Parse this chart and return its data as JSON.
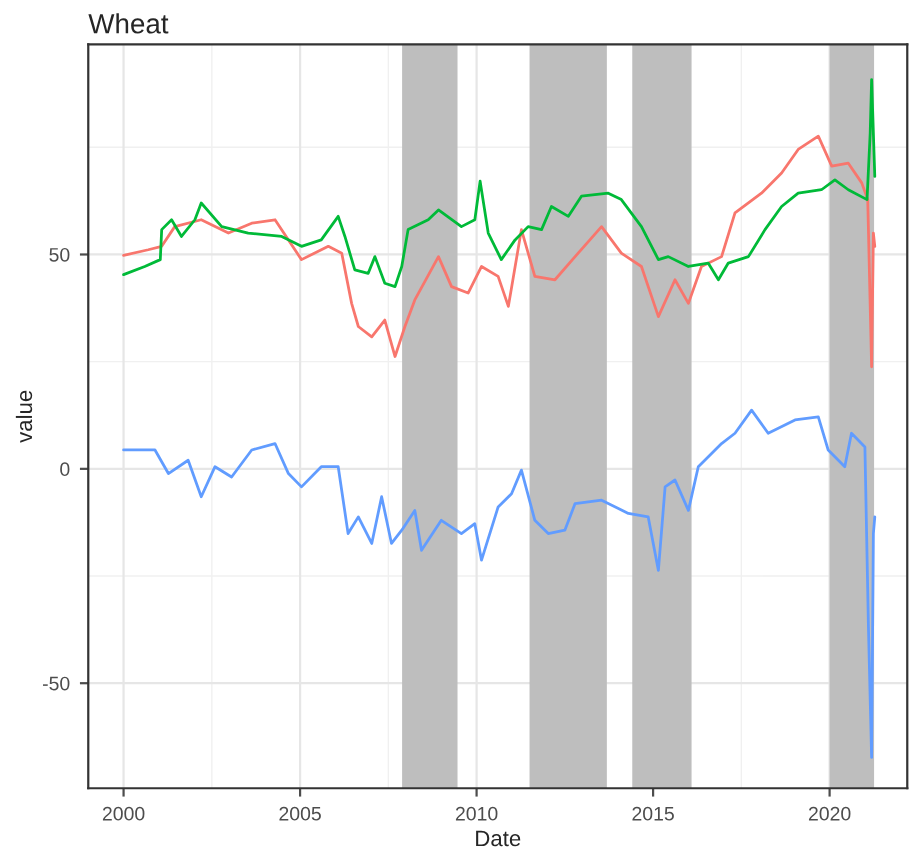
{
  "chart_data": {
    "type": "line",
    "title": "Wheat",
    "xlabel": "Date",
    "ylabel": "value",
    "xlim": [
      1999.0,
      2022.2
    ],
    "xticks": [
      2000,
      2005,
      2010,
      2015,
      2020
    ],
    "ylim": [
      -74.5,
      99
    ],
    "yticks": [
      -50,
      0,
      50
    ],
    "grid": true,
    "legend": false,
    "bands": [
      {
        "axis": "x",
        "from": 2007.89,
        "to": 2009.46,
        "color": "#bebebe"
      },
      {
        "axis": "x",
        "from": 2011.5,
        "to": 2013.69,
        "color": "#bebebe"
      },
      {
        "axis": "x",
        "from": 2014.41,
        "to": 2016.09,
        "color": "#bebebe"
      },
      {
        "axis": "x",
        "from": 2020.0,
        "to": 2021.26,
        "color": "#bebebe"
      }
    ],
    "series": [
      {
        "color": "#f8766d",
        "x": [
          2000,
          2000.7,
          2001.08,
          2001.45,
          2002.2,
          2002.97,
          2003.63,
          2004.29,
          2005.04,
          2005.8,
          2006.18,
          2006.46,
          2006.65,
          2007.03,
          2007.4,
          2007.69,
          2007.97,
          2008.25,
          2008.92,
          2009.29,
          2009.76,
          2010.14,
          2010.61,
          2010.9,
          2011.27,
          2011.65,
          2012.22,
          2012.79,
          2013.54,
          2014.1,
          2014.67,
          2015.15,
          2015.62,
          2016.0,
          2016.37,
          2016.94,
          2017.32,
          2018.07,
          2018.64,
          2019.11,
          2019.68,
          2020.06,
          2020.53,
          2020.91,
          2021.08,
          2021.19,
          2021.24,
          2021.28
        ],
        "values": [
          49.8,
          51.1,
          51.9,
          56.5,
          58.1,
          55.0,
          57.3,
          58.1,
          48.8,
          51.9,
          50.3,
          38.6,
          33.2,
          30.8,
          34.7,
          26.2,
          33.2,
          39.4,
          49.5,
          42.5,
          41.0,
          47.2,
          44.9,
          37.9,
          55.8,
          44.9,
          44.1,
          49.5,
          56.5,
          50.3,
          47.2,
          35.5,
          44.1,
          38.6,
          47.2,
          49.5,
          59.7,
          64.3,
          69.0,
          74.5,
          77.6,
          70.6,
          71.3,
          66.7,
          62.8,
          23.8,
          55.0,
          51.9
        ]
      },
      {
        "color": "#00ba38",
        "x": [
          2000,
          2000.6,
          2001.04,
          2001.08,
          2001.36,
          2001.64,
          2002.02,
          2002.2,
          2002.78,
          2003.53,
          2004.48,
          2005.04,
          2005.6,
          2006.08,
          2006.27,
          2006.55,
          2006.93,
          2007.12,
          2007.4,
          2007.69,
          2007.88,
          2008.06,
          2008.63,
          2008.92,
          2009.57,
          2009.95,
          2010.1,
          2010.33,
          2010.7,
          2011.09,
          2011.46,
          2011.84,
          2012.12,
          2012.6,
          2012.97,
          2013.73,
          2014.1,
          2014.67,
          2015.15,
          2015.43,
          2016.0,
          2016.56,
          2016.85,
          2017.13,
          2017.7,
          2018.17,
          2018.64,
          2019.11,
          2019.77,
          2020.15,
          2020.53,
          2021.06,
          2021.15,
          2021.19,
          2021.28
        ],
        "values": [
          45.3,
          47.2,
          48.8,
          55.8,
          58.1,
          54.2,
          58.1,
          62.0,
          56.5,
          55.0,
          54.2,
          51.9,
          53.4,
          58.9,
          54.2,
          46.4,
          45.6,
          49.5,
          43.3,
          42.5,
          47.2,
          55.8,
          58.1,
          60.4,
          56.5,
          58.1,
          67.1,
          55.0,
          48.8,
          53.4,
          56.5,
          55.8,
          61.2,
          58.9,
          63.6,
          64.3,
          62.8,
          56.5,
          48.8,
          49.5,
          47.2,
          48.0,
          44.1,
          48.0,
          49.5,
          55.8,
          61.2,
          64.3,
          65.1,
          67.4,
          65.1,
          62.8,
          78.3,
          90.8,
          68.2
        ]
      },
      {
        "color": "#619cff",
        "x": [
          2000,
          2000.89,
          2001.27,
          2001.83,
          2002.2,
          2002.59,
          2003.06,
          2003.63,
          2004.29,
          2004.67,
          2005.04,
          2005.6,
          2006.08,
          2006.36,
          2006.65,
          2007.03,
          2007.31,
          2007.59,
          2007.88,
          2008.25,
          2008.44,
          2009.0,
          2009.57,
          2009.95,
          2010.14,
          2010.61,
          2010.99,
          2011.27,
          2011.65,
          2012.03,
          2012.5,
          2012.79,
          2013.54,
          2014.3,
          2014.86,
          2015.15,
          2015.34,
          2015.62,
          2016.0,
          2016.28,
          2016.94,
          2017.32,
          2017.79,
          2018.26,
          2019.02,
          2019.68,
          2019.96,
          2020.43,
          2020.62,
          2021.0,
          2021.1,
          2021.19,
          2021.24,
          2021.28
        ],
        "values": [
          4.4,
          4.4,
          -1.1,
          2.0,
          -6.5,
          0.5,
          -1.9,
          4.4,
          5.9,
          -1.1,
          -4.2,
          0.5,
          0.5,
          -15.1,
          -11.2,
          -17.4,
          -6.5,
          -17.4,
          -14.3,
          -9.7,
          -19.0,
          -12.0,
          -15.1,
          -12.8,
          -21.3,
          -8.9,
          -5.8,
          -0.3,
          -12.0,
          -15.1,
          -14.3,
          -8.1,
          -7.3,
          -10.4,
          -11.2,
          -23.7,
          -4.2,
          -2.6,
          -9.7,
          0.5,
          5.9,
          8.3,
          13.7,
          8.3,
          11.4,
          12.1,
          4.4,
          0.5,
          8.3,
          5.1,
          -36.9,
          -67.3,
          -15.1,
          -11.2
        ]
      }
    ]
  }
}
